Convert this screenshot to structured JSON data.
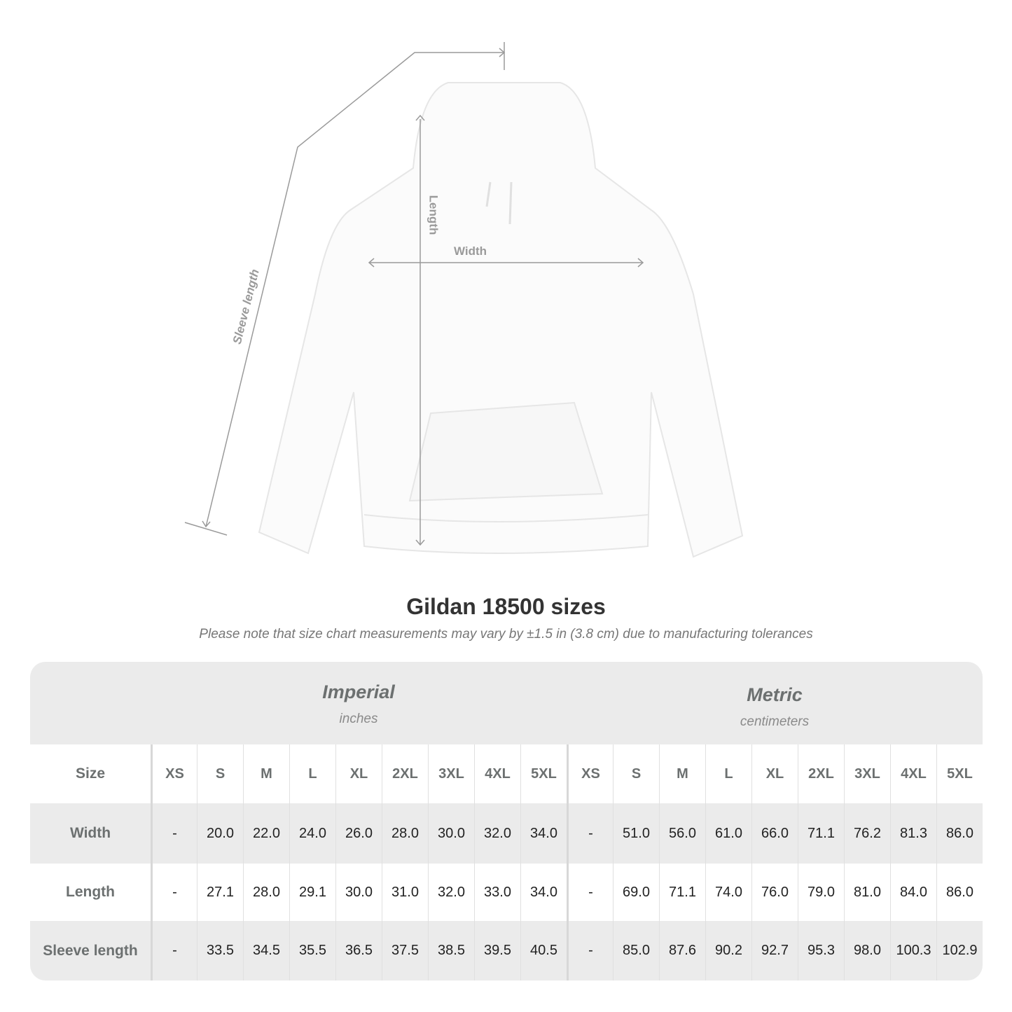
{
  "illustration": {
    "labels": {
      "length": "Length",
      "width": "Width",
      "sleeve": "Sleeve length"
    }
  },
  "title": "Gildan 18500 sizes",
  "subtitle": "Please note that size chart measurements may vary by ±1.5 in (3.8 cm) due to manufacturing tolerances",
  "table": {
    "imperial": {
      "name": "Imperial",
      "unit": "inches"
    },
    "metric": {
      "name": "Metric",
      "unit": "centimeters"
    },
    "size_label": "Size",
    "sizes": [
      "XS",
      "S",
      "M",
      "L",
      "XL",
      "2XL",
      "3XL",
      "4XL",
      "5XL"
    ],
    "rows": [
      {
        "label": "Width",
        "imperial": [
          "-",
          "20.0",
          "22.0",
          "24.0",
          "26.0",
          "28.0",
          "30.0",
          "32.0",
          "34.0"
        ],
        "metric": [
          "-",
          "51.0",
          "56.0",
          "61.0",
          "66.0",
          "71.1",
          "76.2",
          "81.3",
          "86.0"
        ]
      },
      {
        "label": "Length",
        "imperial": [
          "-",
          "27.1",
          "28.0",
          "29.1",
          "30.0",
          "31.0",
          "32.0",
          "33.0",
          "34.0"
        ],
        "metric": [
          "-",
          "69.0",
          "71.1",
          "74.0",
          "76.0",
          "79.0",
          "81.0",
          "84.0",
          "86.0"
        ]
      },
      {
        "label": "Sleeve length",
        "imperial": [
          "-",
          "33.5",
          "34.5",
          "35.5",
          "36.5",
          "37.5",
          "38.5",
          "39.5",
          "40.5"
        ],
        "metric": [
          "-",
          "85.0",
          "87.6",
          "90.2",
          "92.7",
          "95.3",
          "98.0",
          "100.3",
          "102.9"
        ]
      }
    ]
  }
}
